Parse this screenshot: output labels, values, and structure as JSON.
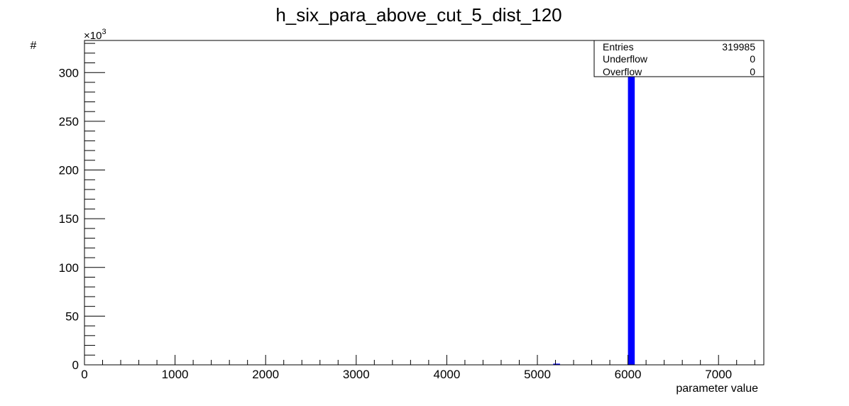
{
  "chart_data": {
    "type": "bar",
    "title": "h_six_para_above_cut_5_dist_120",
    "xlabel": "parameter value",
    "ylabel": "#",
    "y_multiplier": {
      "base": "10",
      "exponent": "3"
    },
    "xlim": [
      0,
      7500
    ],
    "ylim": [
      0,
      333
    ],
    "x_ticks": [
      0,
      1000,
      2000,
      3000,
      4000,
      5000,
      6000,
      7000
    ],
    "y_ticks": [
      0,
      50,
      100,
      150,
      200,
      250,
      300
    ],
    "bin_width": 75,
    "bars": [
      {
        "x": 5175,
        "value": 1.2
      },
      {
        "x": 6000,
        "value": 318.8
      }
    ],
    "grid": false,
    "legend": "none",
    "bar_color": "#0000ff",
    "stats": {
      "placement": "top-right",
      "rows": [
        {
          "label": "Entries",
          "value": "319985"
        },
        {
          "label": "Underflow",
          "value": "0"
        },
        {
          "label": "Overflow",
          "value": "0"
        }
      ]
    }
  }
}
